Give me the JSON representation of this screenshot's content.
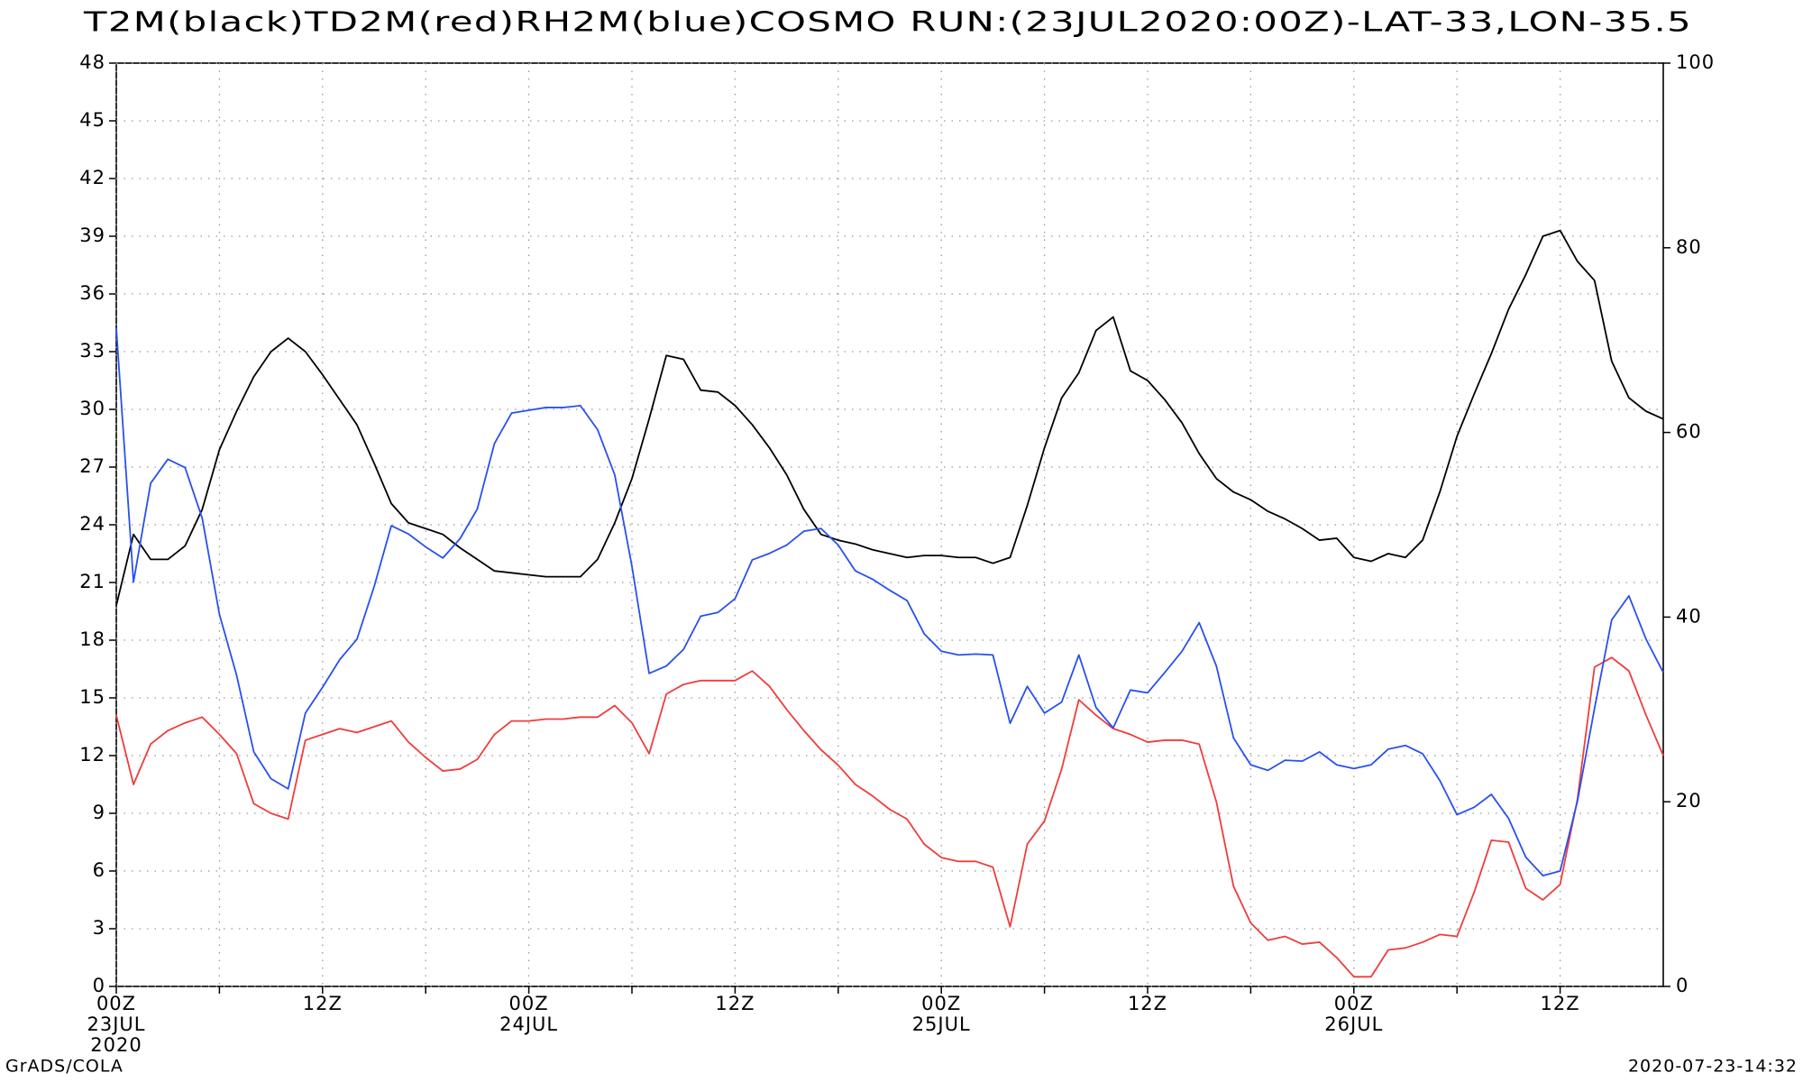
{
  "chart_data": {
    "type": "line",
    "title": "T2M(black)TD2M(red)RH2M(blue)COSMO RUN:(23JUL2020:00Z)-LAT-33,LON-35.5",
    "footer_left": "GrADS/COLA",
    "footer_right": "2020-07-23-14:32",
    "x": [
      0,
      1,
      2,
      3,
      4,
      5,
      6,
      7,
      8,
      9,
      10,
      11,
      12,
      13,
      14,
      15,
      16,
      17,
      18,
      19,
      20,
      21,
      22,
      23,
      24,
      25,
      26,
      27,
      28,
      29,
      30,
      31,
      32,
      33,
      34,
      35,
      36,
      37,
      38,
      39,
      40,
      41,
      42,
      43,
      44,
      45,
      46,
      47,
      48,
      49,
      50,
      51,
      52,
      53,
      54,
      55,
      56,
      57,
      58,
      59,
      60,
      61,
      62,
      63,
      64,
      65,
      66,
      67,
      68,
      69,
      70,
      71,
      72,
      73,
      74,
      75,
      76,
      77,
      78,
      79,
      80,
      81,
      82,
      83,
      84,
      85,
      86,
      87,
      88,
      89,
      90
    ],
    "xlim": [
      0,
      90
    ],
    "xticks": [
      {
        "value": 0,
        "label": [
          "00Z",
          "23JUL",
          "2020"
        ]
      },
      {
        "value": 6,
        "label": null
      },
      {
        "value": 12,
        "label": [
          "12Z"
        ]
      },
      {
        "value": 18,
        "label": null
      },
      {
        "value": 24,
        "label": [
          "00Z",
          "24JUL"
        ]
      },
      {
        "value": 30,
        "label": null
      },
      {
        "value": 36,
        "label": [
          "12Z"
        ]
      },
      {
        "value": 42,
        "label": null
      },
      {
        "value": 48,
        "label": [
          "00Z",
          "25JUL"
        ]
      },
      {
        "value": 54,
        "label": null
      },
      {
        "value": 60,
        "label": [
          "12Z"
        ]
      },
      {
        "value": 66,
        "label": null
      },
      {
        "value": 72,
        "label": [
          "00Z",
          "26JUL"
        ]
      },
      {
        "value": 78,
        "label": null
      },
      {
        "value": 84,
        "label": [
          "12Z"
        ]
      }
    ],
    "ylim": [
      0,
      48
    ],
    "yticks": [
      0,
      3,
      6,
      9,
      12,
      15,
      18,
      21,
      24,
      27,
      30,
      33,
      36,
      39,
      42,
      45,
      48
    ],
    "y2lim": [
      0,
      100
    ],
    "y2ticks": [
      0,
      20,
      40,
      60,
      80,
      100
    ],
    "grid": true,
    "series": [
      {
        "color": "#000000",
        "values": [
          19.8,
          23.5,
          22.2,
          22.2,
          22.9,
          24.8,
          27.9,
          29.9,
          31.7,
          33.0,
          33.7,
          33.0,
          31.8,
          30.5,
          29.2,
          27.2,
          25.1,
          24.1,
          23.8,
          23.5,
          22.8,
          22.2,
          21.6,
          21.5,
          21.4,
          21.3,
          21.3,
          21.3,
          22.2,
          24.1,
          26.4,
          29.5,
          32.8,
          32.6,
          31.0,
          30.9,
          30.2,
          29.2,
          28.0,
          26.6,
          24.8,
          23.5,
          23.2,
          23.0,
          22.7,
          22.5,
          22.3,
          22.4,
          22.4,
          22.3,
          22.3,
          22.0,
          22.3,
          25.0,
          28.0,
          30.6,
          31.9,
          34.1,
          34.8,
          32.0,
          31.5,
          30.5,
          29.3,
          27.7,
          26.4,
          25.7,
          25.3,
          24.7,
          24.3,
          23.8,
          23.2,
          23.3,
          22.3,
          22.1,
          22.5,
          22.3,
          23.2,
          25.7,
          28.6,
          30.8,
          32.9,
          35.2,
          37.0,
          39.0,
          39.3,
          37.7,
          36.7,
          32.5,
          30.6,
          29.9,
          29.5
        ]
      },
      {
        "color": "#f03c3c",
        "values": [
          14.1,
          10.5,
          12.6,
          13.3,
          13.7,
          14.0,
          13.1,
          12.1,
          9.5,
          9.0,
          8.7,
          12.8,
          13.1,
          13.4,
          13.2,
          13.5,
          13.8,
          12.7,
          11.9,
          11.2,
          11.3,
          11.8,
          13.1,
          13.8,
          13.8,
          13.9,
          13.9,
          14.0,
          14.0,
          14.6,
          13.7,
          12.1,
          15.2,
          15.7,
          15.9,
          15.9,
          15.9,
          16.4,
          15.6,
          14.4,
          13.3,
          12.3,
          11.5,
          10.5,
          9.9,
          9.2,
          8.7,
          7.4,
          6.7,
          6.5,
          6.5,
          6.2,
          3.1,
          7.4,
          8.6,
          11.3,
          14.9,
          14.1,
          13.4,
          13.1,
          12.7,
          12.8,
          12.8,
          12.6,
          9.6,
          5.2,
          3.3,
          2.4,
          2.6,
          2.2,
          2.3,
          1.5,
          0.5,
          0.5,
          1.9,
          2.0,
          2.3,
          2.7,
          2.6,
          4.9,
          7.6,
          7.5,
          5.1,
          4.5,
          5.3,
          9.7,
          16.6,
          17.1,
          16.4,
          14.1,
          12.0
        ]
      },
      {
        "color": "#2850f0",
        "axis": "y2",
        "values": [
          71.3,
          43.8,
          54.5,
          57.1,
          56.2,
          50.7,
          40.3,
          33.7,
          25.4,
          22.5,
          21.4,
          29.6,
          32.4,
          35.4,
          37.6,
          43.3,
          49.9,
          49.0,
          47.6,
          46.4,
          48.5,
          51.7,
          58.8,
          62.1,
          62.4,
          62.7,
          62.7,
          62.9,
          60.3,
          55.4,
          45.5,
          33.9,
          34.7,
          36.5,
          40.1,
          40.5,
          42.0,
          46.2,
          46.9,
          47.8,
          49.3,
          49.6,
          47.8,
          45.0,
          44.1,
          42.9,
          41.8,
          38.2,
          36.3,
          35.9,
          36.0,
          35.9,
          28.5,
          32.5,
          29.6,
          30.8,
          35.9,
          30.2,
          28.0,
          32.1,
          31.8,
          34.0,
          36.3,
          39.4,
          34.7,
          26.9,
          24.0,
          23.4,
          24.5,
          24.4,
          25.4,
          24.0,
          23.6,
          24.0,
          25.7,
          26.1,
          25.2,
          22.3,
          18.6,
          19.4,
          20.8,
          18.2,
          14.0,
          12.0,
          12.5,
          20.0,
          30.1,
          39.7,
          42.3,
          37.6,
          34.0
        ]
      }
    ]
  }
}
